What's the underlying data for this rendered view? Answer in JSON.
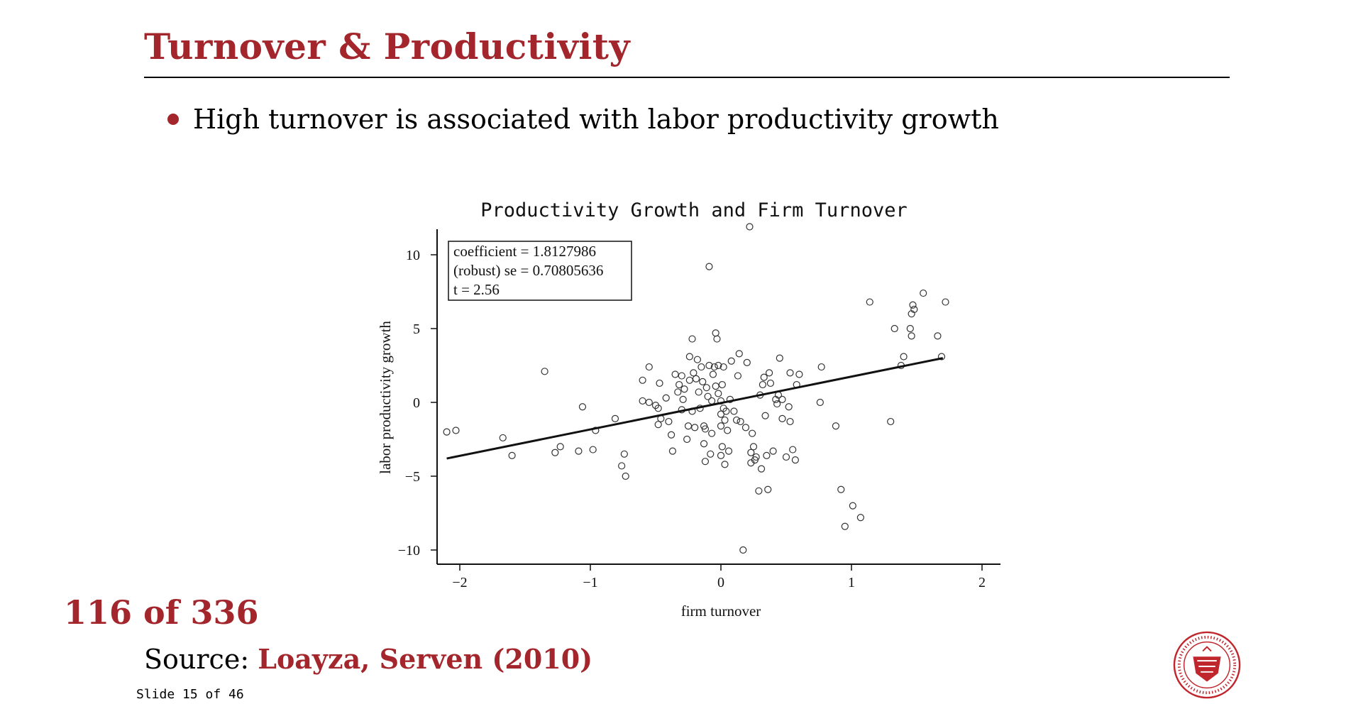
{
  "slide": {
    "title": "Turnover & Productivity",
    "bullet": "High turnover is associated with labor productivity growth",
    "page_counter": "116 of 336",
    "source_label": "Source:",
    "source_link": "Loayza, Serven (2010)",
    "slide_number": "Slide 15 of 46",
    "accent_color": "#a3262c",
    "logo_icon": "carnegie-mellon-seal-icon"
  },
  "chart_data": {
    "type": "scatter",
    "title": "Productivity Growth and Firm Turnover",
    "xlabel": "firm turnover",
    "ylabel": "labor productivity growth",
    "xlim": [
      -2.2,
      2.1
    ],
    "ylim": [
      -10.7,
      12
    ],
    "xticks": [
      -2,
      -1,
      0,
      1,
      2
    ],
    "xtick_labels": [
      "−2",
      "−1",
      "0",
      "1",
      "2"
    ],
    "yticks": [
      -10,
      -5,
      0,
      5,
      10
    ],
    "ytick_labels": [
      "−10",
      "−5",
      "0",
      "5",
      "10"
    ],
    "grid": false,
    "stats_box": [
      "coefficient = 1.8127986",
      "(robust) se = 0.70805636",
      "t = 2.56"
    ],
    "fit_line": {
      "x": [
        -2.1,
        1.7
      ],
      "y": [
        -3.8,
        3.0
      ]
    },
    "points": [
      [
        -2.1,
        -2.0
      ],
      [
        -2.03,
        -1.9
      ],
      [
        -1.67,
        -2.4
      ],
      [
        -1.6,
        -3.6
      ],
      [
        -1.35,
        2.1
      ],
      [
        -1.27,
        -3.4
      ],
      [
        -1.23,
        -3.0
      ],
      [
        -1.09,
        -3.3
      ],
      [
        -1.06,
        -0.3
      ],
      [
        -0.98,
        -3.2
      ],
      [
        -0.96,
        -1.9
      ],
      [
        -0.81,
        -1.1
      ],
      [
        -0.76,
        -4.3
      ],
      [
        -0.74,
        -3.5
      ],
      [
        -0.73,
        -5.0
      ],
      [
        -0.6,
        1.5
      ],
      [
        -0.6,
        0.1
      ],
      [
        -0.55,
        0.0
      ],
      [
        -0.55,
        2.4
      ],
      [
        -0.5,
        -0.2
      ],
      [
        -0.48,
        -0.4
      ],
      [
        -0.48,
        -1.5
      ],
      [
        -0.47,
        1.3
      ],
      [
        -0.46,
        -1.1
      ],
      [
        -0.42,
        0.3
      ],
      [
        -0.4,
        -1.3
      ],
      [
        -0.38,
        -2.2
      ],
      [
        -0.37,
        -3.3
      ],
      [
        -0.35,
        1.9
      ],
      [
        -0.33,
        0.7
      ],
      [
        -0.32,
        1.2
      ],
      [
        -0.3,
        1.8
      ],
      [
        -0.3,
        -0.5
      ],
      [
        -0.29,
        0.2
      ],
      [
        -0.28,
        0.9
      ],
      [
        -0.26,
        -2.5
      ],
      [
        -0.25,
        -1.6
      ],
      [
        -0.24,
        3.1
      ],
      [
        -0.24,
        1.5
      ],
      [
        -0.22,
        -0.6
      ],
      [
        -0.22,
        4.3
      ],
      [
        -0.21,
        2.0
      ],
      [
        -0.2,
        -1.7
      ],
      [
        -0.19,
        1.6
      ],
      [
        -0.18,
        2.9
      ],
      [
        -0.17,
        0.7
      ],
      [
        -0.16,
        -0.4
      ],
      [
        -0.15,
        2.4
      ],
      [
        -0.14,
        1.4
      ],
      [
        -0.13,
        -1.6
      ],
      [
        -0.13,
        -2.8
      ],
      [
        -0.12,
        -4.0
      ],
      [
        -0.12,
        -1.8
      ],
      [
        -0.11,
        1.0
      ],
      [
        -0.1,
        0.4
      ],
      [
        -0.09,
        2.5
      ],
      [
        -0.09,
        9.2
      ],
      [
        -0.08,
        -3.5
      ],
      [
        -0.07,
        -2.1
      ],
      [
        -0.07,
        0.1
      ],
      [
        -0.06,
        1.9
      ],
      [
        -0.05,
        2.4
      ],
      [
        -0.04,
        1.1
      ],
      [
        -0.04,
        4.7
      ],
      [
        -0.03,
        4.3
      ],
      [
        -0.02,
        0.6
      ],
      [
        -0.02,
        2.5
      ],
      [
        0.0,
        -0.8
      ],
      [
        0.0,
        0.1
      ],
      [
        0.0,
        -1.6
      ],
      [
        0.0,
        -3.6
      ],
      [
        0.01,
        -3.0
      ],
      [
        0.01,
        1.2
      ],
      [
        0.02,
        -0.4
      ],
      [
        0.02,
        2.4
      ],
      [
        0.03,
        -1.2
      ],
      [
        0.03,
        -4.2
      ],
      [
        0.04,
        -0.6
      ],
      [
        0.05,
        -1.9
      ],
      [
        0.06,
        -3.3
      ],
      [
        0.07,
        0.2
      ],
      [
        0.08,
        2.8
      ],
      [
        0.1,
        -0.6
      ],
      [
        0.12,
        -1.2
      ],
      [
        0.13,
        1.8
      ],
      [
        0.14,
        3.3
      ],
      [
        0.15,
        -1.3
      ],
      [
        0.17,
        -10.0
      ],
      [
        0.19,
        -1.7
      ],
      [
        0.2,
        2.7
      ],
      [
        0.22,
        11.9
      ],
      [
        0.23,
        -3.4
      ],
      [
        0.23,
        -4.1
      ],
      [
        0.24,
        -2.1
      ],
      [
        0.25,
        -3.0
      ],
      [
        0.26,
        -3.9
      ],
      [
        0.27,
        -3.7
      ],
      [
        0.29,
        -6.0
      ],
      [
        0.3,
        0.5
      ],
      [
        0.31,
        -4.5
      ],
      [
        0.32,
        1.2
      ],
      [
        0.33,
        1.7
      ],
      [
        0.34,
        -0.9
      ],
      [
        0.35,
        -3.6
      ],
      [
        0.36,
        -5.9
      ],
      [
        0.37,
        2.0
      ],
      [
        0.38,
        1.3
      ],
      [
        0.4,
        -3.3
      ],
      [
        0.42,
        0.2
      ],
      [
        0.43,
        -0.1
      ],
      [
        0.44,
        0.5
      ],
      [
        0.45,
        3.0
      ],
      [
        0.47,
        0.2
      ],
      [
        0.47,
        -1.1
      ],
      [
        0.5,
        -3.7
      ],
      [
        0.52,
        -0.3
      ],
      [
        0.53,
        -1.3
      ],
      [
        0.53,
        2.0
      ],
      [
        0.55,
        -3.2
      ],
      [
        0.57,
        -3.9
      ],
      [
        0.58,
        1.2
      ],
      [
        0.6,
        1.9
      ],
      [
        0.76,
        0.0
      ],
      [
        0.77,
        2.4
      ],
      [
        0.88,
        -1.6
      ],
      [
        0.92,
        -5.9
      ],
      [
        0.95,
        -8.4
      ],
      [
        1.01,
        -7.0
      ],
      [
        1.07,
        -7.8
      ],
      [
        1.14,
        6.8
      ],
      [
        1.3,
        -1.3
      ],
      [
        1.33,
        5.0
      ],
      [
        1.38,
        2.5
      ],
      [
        1.4,
        3.1
      ],
      [
        1.45,
        5.0
      ],
      [
        1.46,
        6.0
      ],
      [
        1.46,
        4.5
      ],
      [
        1.47,
        6.6
      ],
      [
        1.48,
        6.3
      ],
      [
        1.55,
        7.4
      ],
      [
        1.66,
        4.5
      ],
      [
        1.69,
        3.1
      ],
      [
        1.72,
        6.8
      ]
    ]
  }
}
